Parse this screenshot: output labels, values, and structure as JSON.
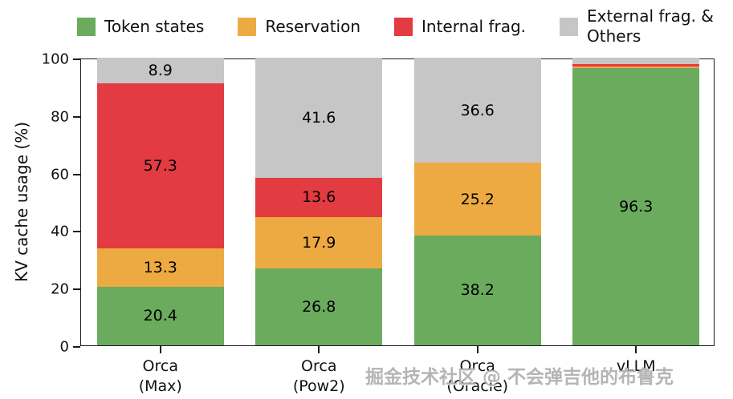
{
  "watermark": "掘金技术社区 @ 不会弹吉他的布鲁克",
  "chart_data": {
    "type": "bar",
    "stacked": true,
    "title": "",
    "xlabel": "",
    "ylabel": "KV cache usage (%)",
    "ylim": [
      0,
      100
    ],
    "yticks": [
      0,
      20,
      40,
      60,
      80,
      100
    ],
    "grid": false,
    "legend_position": "top",
    "label_threshold": 5,
    "categories": [
      "Orca\n(Max)",
      "Orca\n(Pow2)",
      "Orca\n(Oracle)",
      "vLLM"
    ],
    "series": [
      {
        "name": "Token states",
        "color": "#6aab5e",
        "values": [
          20.4,
          26.8,
          38.2,
          96.3
        ]
      },
      {
        "name": "Reservation",
        "color": "#edaa42",
        "values": [
          13.3,
          17.9,
          25.2,
          0.6
        ]
      },
      {
        "name": "Internal frag.",
        "color": "#e23b41",
        "values": [
          57.3,
          13.6,
          0.0,
          0.8
        ]
      },
      {
        "name": "External frag. & Others",
        "color": "#c6c6c6",
        "values": [
          8.9,
          41.6,
          36.6,
          2.3
        ]
      }
    ]
  }
}
